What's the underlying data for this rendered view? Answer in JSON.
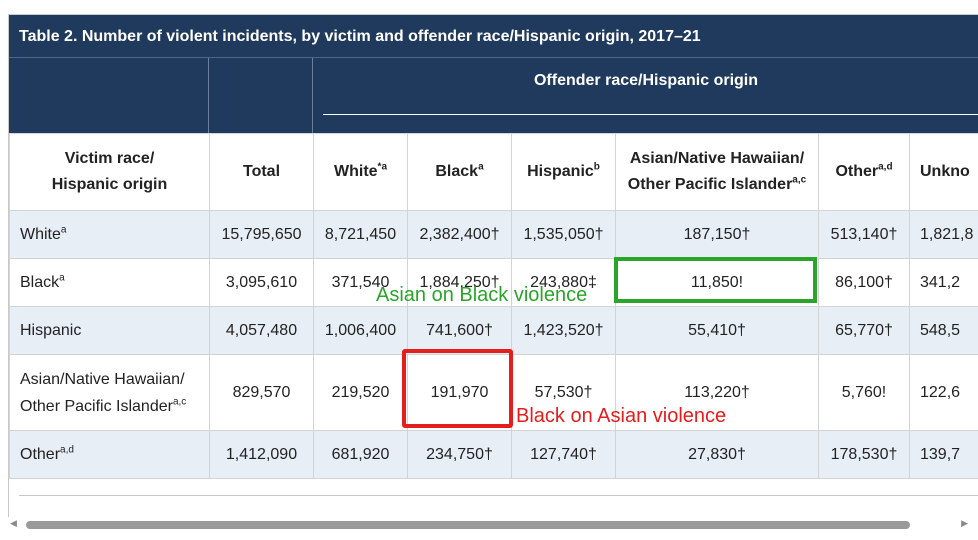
{
  "table": {
    "title": "Table 2. Number of violent incidents, by victim and offender race/Hispanic origin, 2017–21",
    "group_header": "Offender race/Hispanic origin",
    "headers": {
      "victim_line1": "Victim race/",
      "victim_line2": "Hispanic origin",
      "total": "Total",
      "white": "White",
      "white_sup": "*a",
      "black": "Black",
      "black_sup": "a",
      "hispanic": "Hispanic",
      "hispanic_sup": "b",
      "asian_line1": "Asian/Native Hawaiian/",
      "asian_line2": "Other Pacific Islander",
      "asian_sup": "a,c",
      "other": "Other",
      "other_sup": "a,d",
      "unknown": "Unkno"
    },
    "rows": [
      {
        "victim": "White",
        "victim_sup": "a",
        "cells": [
          "15,795,650",
          "8,721,450",
          "2,382,400†",
          "1,535,050†",
          "187,150†",
          "513,140†",
          "1,821,8"
        ]
      },
      {
        "victim": "Black",
        "victim_sup": "a",
        "cells": [
          "3,095,610",
          "371,540",
          "1,884,250†",
          "243,880‡",
          "11,850!",
          "86,100†",
          "341,2"
        ]
      },
      {
        "victim": "Hispanic",
        "victim_sup": "",
        "cells": [
          "4,057,480",
          "1,006,400",
          "741,600†",
          "1,423,520†",
          "55,410†",
          "65,770†",
          "548,5"
        ]
      },
      {
        "victim_line1": "Asian/Native Hawaiian/",
        "victim_line2": "Other Pacific Islander",
        "victim_sup": "a,c",
        "cells": [
          "829,570",
          "219,520",
          "191,970",
          "57,530†",
          "113,220†",
          "5,760!",
          "122,6"
        ]
      },
      {
        "victim": "Other",
        "victim_sup": "a,d",
        "cells": [
          "1,412,090",
          "681,920",
          "234,750†",
          "127,740†",
          "27,830†",
          "178,530†",
          "139,7"
        ]
      }
    ]
  },
  "annotations": {
    "green_label": "Asian on Black violence",
    "red_label": "Black on Asian violence",
    "green_color": "#2aa52a",
    "red_color": "#e41d1d"
  },
  "colors": {
    "header_bg": "#1f3a5c",
    "row_stripe": "#e8eef6"
  },
  "scrollbar": {
    "left_icon": "triangle-left-icon",
    "right_icon": "triangle-right-icon"
  }
}
